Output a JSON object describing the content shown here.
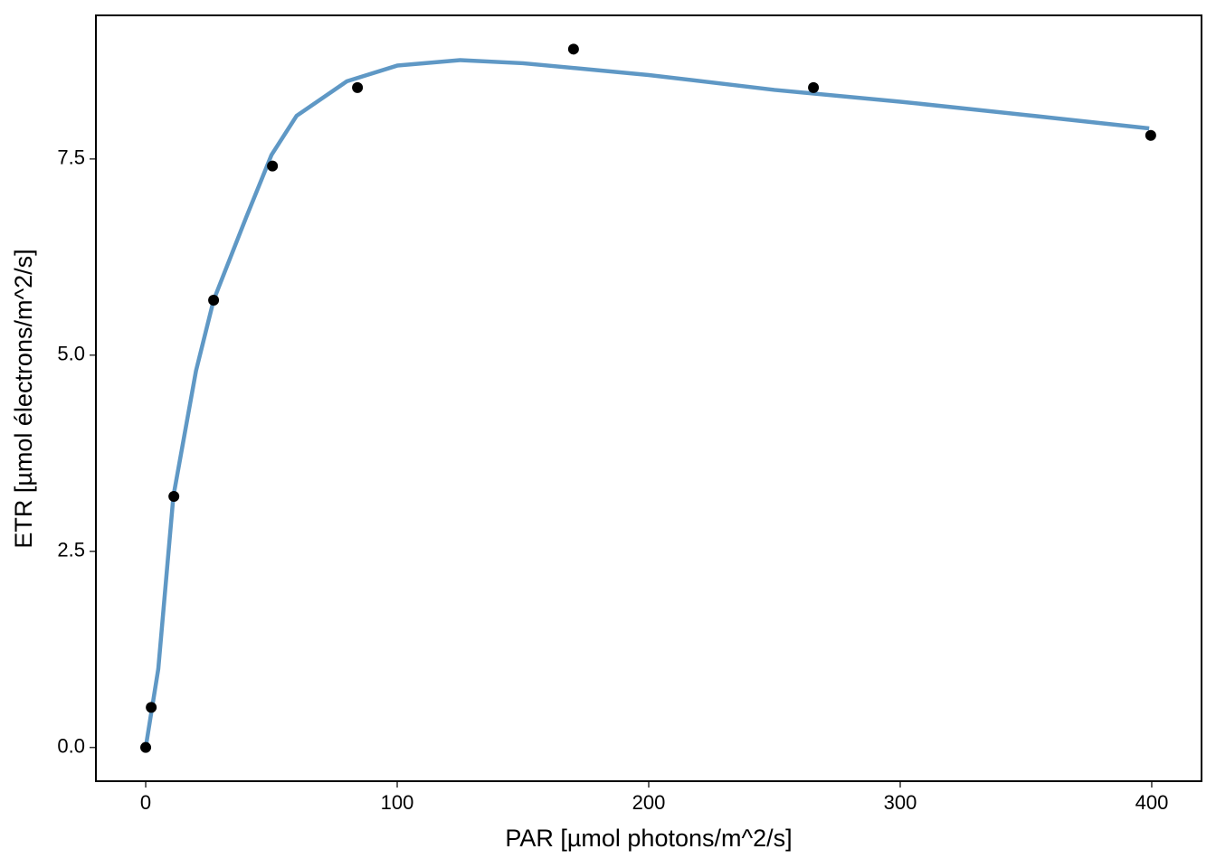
{
  "chart_data": {
    "type": "scatter",
    "x_label": "PAR  [µmol photons/m^2/s]",
    "y_label": "ETR  [µmol électrons/m^2/s]",
    "xlim": [
      -19.8,
      419.8
    ],
    "ylim": [
      -0.43,
      9.33
    ],
    "xticks": [
      0,
      100,
      200,
      300,
      400
    ],
    "yticks": [
      {
        "value": 0,
        "label": "0.0"
      },
      {
        "value": 2.5,
        "label": "2.5"
      },
      {
        "value": 5,
        "label": "5.0"
      },
      {
        "value": 7.5,
        "label": "7.5"
      }
    ],
    "grid": false,
    "series": [
      {
        "type": "scatter",
        "color": "#000000",
        "x": [
          0,
          2.2,
          11.2,
          27,
          50.4,
          84.2,
          170.1,
          265.5,
          399.6
        ],
        "values": [
          0,
          0.51,
          3.2,
          5.7,
          7.41,
          8.41,
          8.9,
          8.41,
          7.8
        ]
      },
      {
        "type": "line",
        "color": "#5f98c5",
        "x": [
          0,
          5,
          11,
          20,
          27,
          40,
          50,
          60,
          80,
          100,
          125,
          150,
          200,
          250,
          300,
          350,
          399
        ],
        "values": [
          0,
          1.0,
          3.2,
          4.8,
          5.7,
          6.76,
          7.55,
          8.05,
          8.49,
          8.69,
          8.76,
          8.72,
          8.57,
          8.38,
          8.23,
          8.06,
          7.89
        ]
      }
    ]
  }
}
